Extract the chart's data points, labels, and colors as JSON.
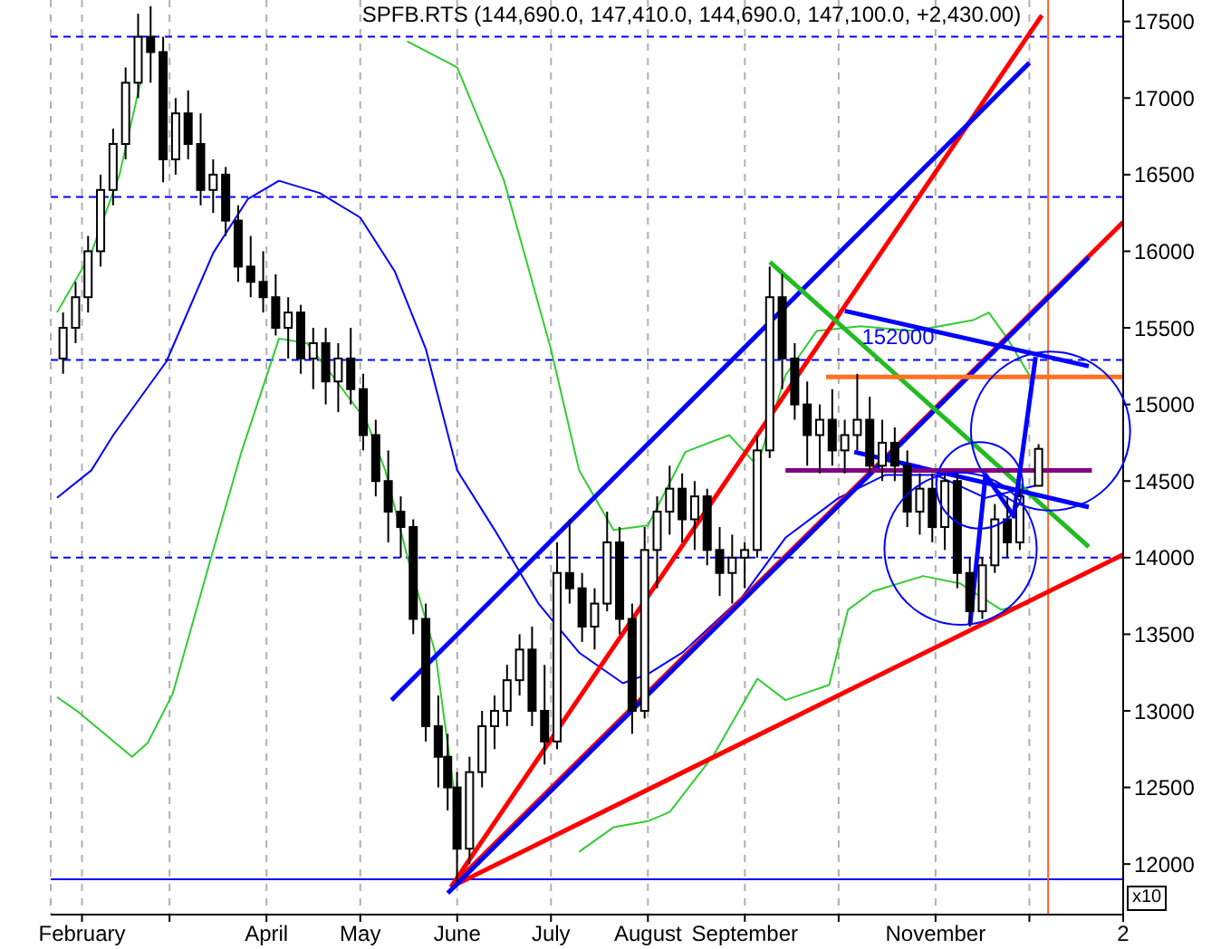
{
  "chart_data": {
    "type": "candlestick",
    "title": "SPFB.RTS (144,690.0, 147,410.0, 144,690.0, 147,100.0, +2,430.00)",
    "color": "#000000",
    "x": [
      "--01-26",
      "--01-30",
      "--02-03",
      "--02-07",
      "--02-11",
      "--02-15",
      "--02-19",
      "--02-23",
      "--02-27",
      "--03-03",
      "--03-07",
      "--03-11",
      "--03-15",
      "--03-19",
      "--03-23",
      "--03-27",
      "--03-31",
      "--04-04",
      "--04-08",
      "--04-12",
      "--04-16",
      "--04-20",
      "--04-24",
      "--04-28",
      "--05-02",
      "--05-06",
      "--05-10",
      "--05-14",
      "--05-18",
      "--05-22",
      "--05-26",
      "--05-29",
      "--06-01",
      "--06-05",
      "--06-09",
      "--06-13",
      "--06-17",
      "--06-21",
      "--06-25",
      "--06-29",
      "--07-03",
      "--07-07",
      "--07-11",
      "--07-15",
      "--07-19",
      "--07-23",
      "--07-27",
      "--07-31",
      "--08-04",
      "--08-08",
      "--08-12",
      "--08-16",
      "--08-20",
      "--08-24",
      "--08-28",
      "--09-01",
      "--09-05",
      "--09-09",
      "--09-13",
      "--09-17",
      "--09-21",
      "--09-25",
      "--09-29",
      "--10-03",
      "--10-07",
      "--10-11",
      "--10-15",
      "--10-19",
      "--10-23",
      "--10-27",
      "--10-31",
      "--11-04",
      "--11-08",
      "--11-12",
      "--11-16",
      "--11-20",
      "--11-24",
      "--11-28",
      "--12-04"
    ],
    "ohlc": [
      [
        15300,
        15600,
        15200,
        15500
      ],
      [
        15500,
        15800,
        15400,
        15700
      ],
      [
        15700,
        16100,
        15600,
        16000
      ],
      [
        16000,
        16500,
        15900,
        16400
      ],
      [
        16400,
        16800,
        16300,
        16700
      ],
      [
        16700,
        17200,
        16600,
        17100
      ],
      [
        17100,
        17550,
        17000,
        17400
      ],
      [
        17400,
        17600,
        17100,
        17300
      ],
      [
        17300,
        17400,
        16450,
        16600
      ],
      [
        16600,
        17000,
        16500,
        16900
      ],
      [
        16900,
        17050,
        16600,
        16700
      ],
      [
        16700,
        16900,
        16300,
        16400
      ],
      [
        16400,
        16600,
        16250,
        16500
      ],
      [
        16500,
        16550,
        16100,
        16200
      ],
      [
        16200,
        16300,
        15800,
        15900
      ],
      [
        15900,
        16100,
        15700,
        15800
      ],
      [
        15800,
        16000,
        15600,
        15700
      ],
      [
        15700,
        15850,
        15450,
        15500
      ],
      [
        15500,
        15700,
        15300,
        15600
      ],
      [
        15600,
        15650,
        15200,
        15300
      ],
      [
        15300,
        15500,
        15100,
        15400
      ],
      [
        15400,
        15500,
        15000,
        15150
      ],
      [
        15150,
        15400,
        14950,
        15300
      ],
      [
        15300,
        15500,
        15000,
        15100
      ],
      [
        15100,
        15200,
        14700,
        14800
      ],
      [
        14800,
        14900,
        14400,
        14500
      ],
      [
        14500,
        14700,
        14100,
        14300
      ],
      [
        14300,
        14400,
        14000,
        14200
      ],
      [
        14200,
        14250,
        13500,
        13600
      ],
      [
        13600,
        13700,
        12800,
        12900
      ],
      [
        12900,
        13100,
        12500,
        12700
      ],
      [
        12700,
        12850,
        12350,
        12500
      ],
      [
        12500,
        12600,
        11880,
        12100
      ],
      [
        12100,
        12700,
        12000,
        12600
      ],
      [
        12600,
        13000,
        12500,
        12900
      ],
      [
        12900,
        13100,
        12750,
        13000
      ],
      [
        13000,
        13300,
        12900,
        13200
      ],
      [
        13200,
        13500,
        13100,
        13400
      ],
      [
        13400,
        13550,
        12900,
        13000
      ],
      [
        13000,
        13300,
        12650,
        12800
      ],
      [
        12800,
        14100,
        12750,
        13900
      ],
      [
        13900,
        14250,
        13700,
        13800
      ],
      [
        13800,
        13900,
        13450,
        13550
      ],
      [
        13550,
        13800,
        13400,
        13700
      ],
      [
        13700,
        14300,
        13650,
        14100
      ],
      [
        14100,
        14200,
        13500,
        13600
      ],
      [
        13600,
        13700,
        12850,
        13000
      ],
      [
        13000,
        14200,
        12950,
        14050
      ],
      [
        14050,
        14400,
        13800,
        14300
      ],
      [
        14300,
        14600,
        14150,
        14450
      ],
      [
        14450,
        14550,
        14100,
        14250
      ],
      [
        14250,
        14500,
        14050,
        14400
      ],
      [
        14400,
        14450,
        13950,
        14050
      ],
      [
        14050,
        14200,
        13750,
        13900
      ],
      [
        13900,
        14150,
        13700,
        14000
      ],
      [
        14000,
        14100,
        13800,
        14050
      ],
      [
        14050,
        14800,
        14000,
        14700
      ],
      [
        14700,
        15900,
        14650,
        15700
      ],
      [
        15700,
        15850,
        15100,
        15300
      ],
      [
        15300,
        15400,
        14900,
        15000
      ],
      [
        15000,
        15150,
        14600,
        14800
      ],
      [
        14800,
        15000,
        14550,
        14900
      ],
      [
        14900,
        15100,
        14600,
        14700
      ],
      [
        14700,
        14900,
        14550,
        14800
      ],
      [
        14800,
        15200,
        14700,
        14900
      ],
      [
        14900,
        15050,
        14550,
        14600
      ],
      [
        14600,
        14900,
        14500,
        14750
      ],
      [
        14750,
        14850,
        14500,
        14600
      ],
      [
        14600,
        14700,
        14200,
        14300
      ],
      [
        14300,
        14550,
        14150,
        14450
      ],
      [
        14450,
        14550,
        14100,
        14200
      ],
      [
        14200,
        14550,
        14050,
        14500
      ],
      [
        14500,
        14550,
        13800,
        13900
      ],
      [
        13900,
        14000,
        13550,
        13650
      ],
      [
        13650,
        14000,
        13600,
        13950
      ],
      [
        13950,
        14350,
        13900,
        14250
      ],
      [
        14250,
        14400,
        14000,
        14100
      ],
      [
        14100,
        14450,
        14050,
        14400
      ],
      [
        14469,
        14741,
        14469,
        14710
      ]
    ],
    "series": [
      {
        "type": "line",
        "color": "#0000ff",
        "x": [
          "--01-24",
          "--02-04",
          "--02-11",
          "--02-28",
          "--03-15",
          "--03-26",
          "--04-05",
          "--04-18",
          "--05-01",
          "--05-12",
          "--05-22",
          "--06-01",
          "--06-13",
          "--06-27",
          "--07-10",
          "--07-24",
          "--08-01",
          "--08-12",
          "--08-31",
          "--09-14",
          "--10-01",
          "--10-16",
          "--11-01",
          "--11-17",
          "--12-03"
        ],
        "values": [
          14390,
          14570,
          14800,
          15280,
          15990,
          16340,
          16460,
          16380,
          16220,
          15870,
          15360,
          14570,
          14180,
          13700,
          13380,
          13180,
          13240,
          13380,
          13740,
          14130,
          14390,
          14540,
          14540,
          14390,
          14470
        ]
      },
      {
        "type": "line",
        "color": "#33cc33",
        "x": [
          "--01-24",
          "--02-04",
          "--02-13",
          "--02-20",
          "--02-26",
          "--03-14",
          "--03-30",
          "--05-16",
          "--06-01",
          "--06-16",
          "--07-01",
          "--07-10",
          "--07-21",
          "--08-01",
          "--08-13",
          "--08-27",
          "--09-05",
          "--09-14",
          "--09-24",
          "--10-08",
          "--10-25",
          "--11-13",
          "--11-18",
          "--11-24",
          "--12-01"
        ],
        "values": [
          15600,
          15990,
          16500,
          17130,
          null,
          null,
          null,
          17370,
          17200,
          16460,
          15360,
          14570,
          14180,
          14210,
          14690,
          14800,
          14600,
          15190,
          15480,
          15510,
          15480,
          15550,
          15600,
          15430,
          15190
        ]
      },
      {
        "type": "line",
        "color": "#33cc33",
        "x": [
          "--01-24",
          "--01-31",
          "--02-17",
          "--02-22",
          "--03-02",
          "--03-14",
          "--03-24",
          "--04-05",
          "--04-14",
          "--04-22",
          "--05-03",
          "--05-09",
          "--05-16",
          "--05-25",
          "--06-01",
          "--06-05",
          "--06-15",
          "--06-22",
          "--07-01",
          "--07-10",
          "--07-21",
          "--08-01",
          "--08-08",
          "--08-22",
          "--09-05",
          "--09-14",
          "--09-28",
          "--10-04",
          "--10-12",
          "--10-28",
          "--11-09",
          "--11-22",
          "--12-01"
        ],
        "values": [
          13090,
          12990,
          12700,
          12790,
          13110,
          13980,
          14690,
          15430,
          15400,
          15190,
          14890,
          14570,
          14010,
          13380,
          12320,
          null,
          null,
          null,
          null,
          12080,
          12240,
          12280,
          12340,
          12710,
          13210,
          13070,
          13170,
          13660,
          13780,
          13880,
          13830,
          13660,
          13700
        ]
      },
      {
        "type": "line",
        "color": "#ff0000",
        "x": [
          "--05-30",
          "--12-05"
        ],
        "values": [
          11850,
          17540
        ]
      },
      {
        "type": "line",
        "color": "#ff0000",
        "x": [
          "--05-30",
          "--12-31"
        ],
        "values": [
          11850,
          16190
        ]
      },
      {
        "type": "line",
        "color": "#ff0000",
        "x": [
          "--05-30",
          "--12-31"
        ],
        "values": [
          11850,
          14020
        ]
      },
      {
        "type": "line",
        "color": "#0000ff",
        "x": [
          "--05-11",
          "--12-01"
        ],
        "values": [
          13070,
          17230
        ]
      },
      {
        "type": "line",
        "color": "#0000ff",
        "x": [
          "--05-29",
          "--12-20"
        ],
        "values": [
          11810,
          15960
        ]
      },
      {
        "type": "line",
        "color": "#22bb22",
        "x": [
          "--09-09",
          "--12-20"
        ],
        "values": [
          15930,
          14070
        ]
      },
      {
        "type": "line",
        "color": "#0000ff",
        "x": [
          "--10-03",
          "--12-20"
        ],
        "values": [
          15610,
          15250
        ]
      },
      {
        "type": "line",
        "color": "#0000ff",
        "x": [
          "--10-06",
          "--12-20"
        ],
        "values": [
          14690,
          14330
        ]
      },
      {
        "type": "line",
        "color": "#800080",
        "x": [
          "--09-14",
          "--12-21"
        ],
        "values": [
          14570,
          14570
        ]
      },
      {
        "type": "line",
        "color": "#ff7020",
        "x": [
          "--09-27",
          "--12-31"
        ],
        "values": [
          15180,
          15180
        ]
      },
      {
        "type": "line",
        "color": "#0000ff",
        "x": [
          "--11-12",
          "--11-17",
          "--11-26",
          "--12-03"
        ],
        "values": [
          13560,
          14540,
          14270,
          15310
        ]
      }
    ],
    "ref_lines": [
      {
        "axis": "y",
        "value": 17400,
        "color": "#0000ff",
        "line_style": "dashed"
      },
      {
        "axis": "y",
        "value": 16355,
        "color": "#0000ff",
        "line_style": "dashed"
      },
      {
        "axis": "y",
        "value": 15290,
        "color": "#0000ff",
        "line_style": "dashed"
      },
      {
        "axis": "y",
        "value": 14000,
        "color": "#0000ff",
        "line_style": "dashed"
      },
      {
        "axis": "y",
        "value": 11900,
        "color": "#0000ff",
        "line_style": "solid"
      },
      {
        "axis": "x",
        "value": "--12-07",
        "color": "#ff6020",
        "line_style": "solid"
      }
    ],
    "annotations": [
      {
        "text": "152000",
        "x": "--10-20",
        "y": 15430
      },
      "x10"
    ],
    "xlim": [
      "--01-22",
      "--12-31"
    ],
    "xticks": [
      {
        "value": "--02-01",
        "label": "February"
      },
      {
        "value": "--03-01",
        "label": null
      },
      {
        "value": "--04-01",
        "label": "April"
      },
      {
        "value": "--05-01",
        "label": "May"
      },
      {
        "value": "--06-01",
        "label": "June"
      },
      {
        "value": "--07-01",
        "label": "July"
      },
      {
        "value": "--08-01",
        "label": "August"
      },
      {
        "value": "--09-01",
        "label": "September"
      },
      {
        "value": "--10-01",
        "label": null
      },
      {
        "value": "--11-01",
        "label": "November"
      },
      {
        "value": "--12-01",
        "label": null
      },
      {
        "value": "--12-31",
        "label": "2"
      }
    ],
    "ylim": [
      11670,
      17640
    ],
    "yticks": [
      12000,
      12500,
      13000,
      13500,
      14000,
      14500,
      15000,
      15500,
      16000,
      16500,
      17000,
      17500
    ],
    "grid": "x",
    "marker": "none"
  }
}
